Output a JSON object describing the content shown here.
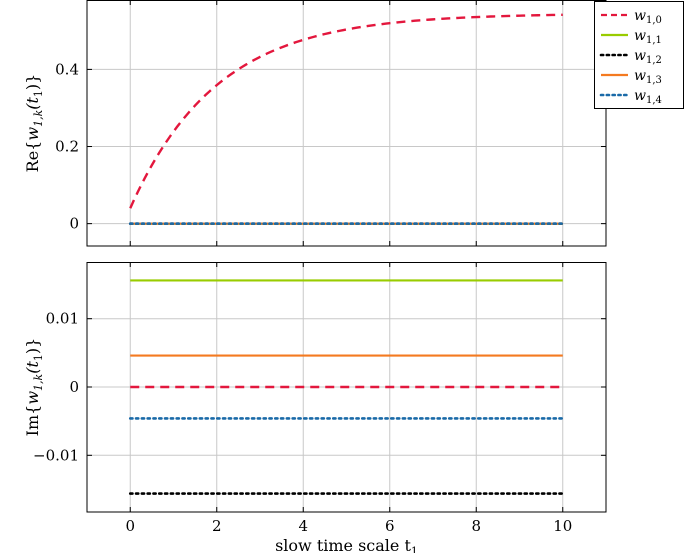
{
  "chart_data": [
    {
      "type": "line",
      "ylabel": "Re{w_{1,k}(t_1)}",
      "ylabel_parts": [
        "Re{",
        "w",
        "1,k",
        "(t",
        "1",
        ")}"
      ],
      "xlim": [
        -1,
        11
      ],
      "ylim": [
        -0.058,
        0.58
      ],
      "x_ticks": [
        0,
        2,
        4,
        6,
        8,
        10
      ],
      "y_ticks": [
        0,
        0.2,
        0.4
      ],
      "y_tick_labels": [
        "0",
        "0.2",
        "0.4"
      ],
      "grid": true,
      "series": [
        {
          "name": "w_{1,0}",
          "color": "#e3173d",
          "style": "dashed",
          "kind": "exp",
          "x0": 0,
          "x1": 10,
          "a": 0.545,
          "b": 0.505,
          "c": 0.5
        },
        {
          "name": "w_{1,1}",
          "color": "#99cc00",
          "style": "solid",
          "kind": "const",
          "x0": 0,
          "x1": 10,
          "value": 0
        },
        {
          "name": "w_{1,2}",
          "color": "#000000",
          "style": "dotted",
          "kind": "const",
          "x0": 0,
          "x1": 10,
          "value": 0
        },
        {
          "name": "w_{1,3}",
          "color": "#f47a20",
          "style": "solid",
          "kind": "const",
          "x0": 0,
          "x1": 10,
          "value": 0
        },
        {
          "name": "w_{1,4}",
          "color": "#1a6aa8",
          "style": "dotted",
          "kind": "const",
          "x0": 0,
          "x1": 10,
          "value": 0
        }
      ]
    },
    {
      "type": "line",
      "ylabel": "Im{w_{1,k}(t_1)}",
      "ylabel_parts": [
        "Im{",
        "w",
        "1,k",
        "(t",
        "1",
        ")}"
      ],
      "xlabel": "slow time scale t_1",
      "xlabel_parts": [
        "slow time scale t",
        "1"
      ],
      "xlim": [
        -1,
        11
      ],
      "ylim": [
        -0.0183,
        0.0183
      ],
      "x_ticks": [
        0,
        2,
        4,
        6,
        8,
        10
      ],
      "x_tick_labels": [
        "0",
        "2",
        "4",
        "6",
        "8",
        "10"
      ],
      "y_ticks": [
        -0.01,
        0,
        0.01
      ],
      "y_tick_labels": [
        "−0.01",
        "0",
        "0.01"
      ],
      "grid": true,
      "series": [
        {
          "name": "w_{1,0}",
          "color": "#e3173d",
          "style": "dashed",
          "kind": "const",
          "x0": 0,
          "x1": 10,
          "value": 0
        },
        {
          "name": "w_{1,1}",
          "color": "#99cc00",
          "style": "solid",
          "kind": "const",
          "x0": 0,
          "x1": 10,
          "value": 0.0156
        },
        {
          "name": "w_{1,2}",
          "color": "#000000",
          "style": "dotted",
          "kind": "const",
          "x0": 0,
          "x1": 10,
          "value": -0.0156
        },
        {
          "name": "w_{1,3}",
          "color": "#f47a20",
          "style": "solid",
          "kind": "const",
          "x0": 0,
          "x1": 10,
          "value": 0.0046
        },
        {
          "name": "w_{1,4}",
          "color": "#1a6aa8",
          "style": "dotted",
          "kind": "const",
          "x0": 0,
          "x1": 10,
          "value": -0.0046
        }
      ]
    }
  ],
  "legend": {
    "placement": "top-right",
    "entries": [
      {
        "base": "w",
        "sub": "1,0",
        "color": "#e3173d",
        "style": "dashed"
      },
      {
        "base": "w",
        "sub": "1,1",
        "color": "#99cc00",
        "style": "solid"
      },
      {
        "base": "w",
        "sub": "1,2",
        "color": "#000000",
        "style": "dotted"
      },
      {
        "base": "w",
        "sub": "1,3",
        "color": "#f47a20",
        "style": "solid"
      },
      {
        "base": "w",
        "sub": "1,4",
        "color": "#1a6aa8",
        "style": "dotted"
      }
    ]
  }
}
